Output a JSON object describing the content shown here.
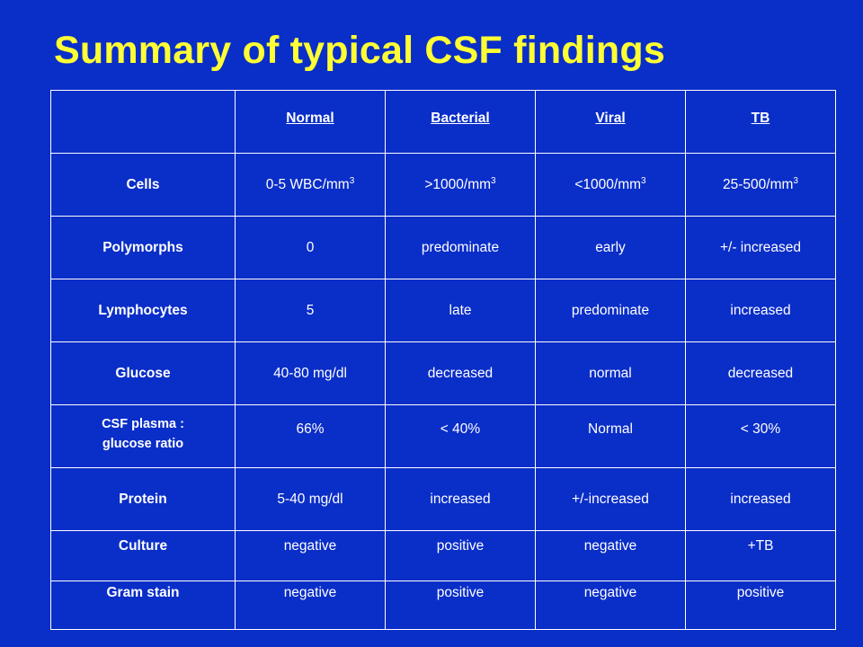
{
  "title": "Summary of typical CSF findings",
  "table": {
    "columns": [
      "",
      "Normal",
      "Bacterial",
      "Viral",
      "TB"
    ],
    "rows": [
      {
        "label": "Cells",
        "cells": [
          {
            "text": "0-5 WBC/mm",
            "sup": "3"
          },
          {
            "text": ">1000/mm",
            "sup": "3"
          },
          {
            "text": "<1000/mm",
            "sup": "3"
          },
          {
            "text": "25-500/mm",
            "sup": "3"
          }
        ]
      },
      {
        "label": "Polymorphs",
        "cells": [
          {
            "text": "0"
          },
          {
            "text": "predominate"
          },
          {
            "text": "early"
          },
          {
            "text": "+/- increased"
          }
        ]
      },
      {
        "label": "Lymphocytes",
        "cells": [
          {
            "text": "5"
          },
          {
            "text": "late"
          },
          {
            "text": "predominate"
          },
          {
            "text": "increased"
          }
        ]
      },
      {
        "label": "Glucose",
        "cells": [
          {
            "text": "40-80 mg/dl"
          },
          {
            "text": "decreased"
          },
          {
            "text": "normal"
          },
          {
            "text": "decreased"
          }
        ]
      },
      {
        "label_line1": "CSF plasma :",
        "label_line2": "glucose ratio",
        "cells": [
          {
            "text": "66%"
          },
          {
            "text": "< 40%"
          },
          {
            "text": "Normal"
          },
          {
            "text": "< 30%"
          }
        ]
      },
      {
        "label": "Protein",
        "cells": [
          {
            "text": "5-40 mg/dl"
          },
          {
            "text": "increased"
          },
          {
            "text": "+/-increased"
          },
          {
            "text": "increased"
          }
        ]
      },
      {
        "label": "Culture",
        "cells": [
          {
            "text": "negative"
          },
          {
            "text": "positive"
          },
          {
            "text": "negative"
          },
          {
            "text": "+TB"
          }
        ]
      },
      {
        "label": "Gram stain",
        "cells": [
          {
            "text": "negative"
          },
          {
            "text": "positive"
          },
          {
            "text": "negative"
          },
          {
            "text": "positive"
          }
        ]
      }
    ]
  },
  "colors": {
    "background": "#0a2ec8",
    "title": "#ffff33",
    "text": "#ffffff",
    "border": "#ffffff"
  }
}
